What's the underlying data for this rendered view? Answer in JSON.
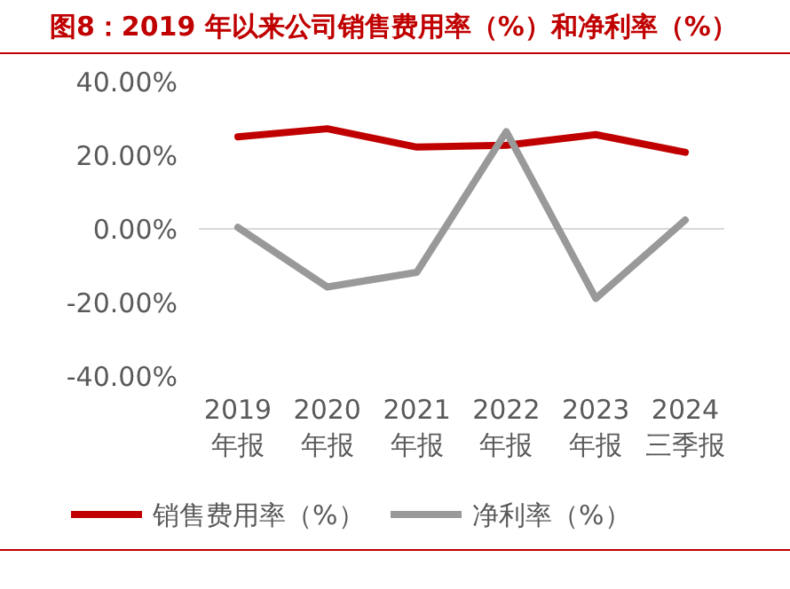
{
  "chart_data": {
    "type": "line",
    "title": "图8：2019 年以来公司销售费用率（%）和净利率（%）",
    "categories": [
      "2019\n年报",
      "2020\n年报",
      "2021\n年报",
      "2022\n年报",
      "2023\n年报",
      "2024\n三季报"
    ],
    "series": [
      {
        "name": "销售费用率（%）",
        "color": "#c00000",
        "values": [
          25.0,
          27.2,
          22.2,
          22.7,
          25.6,
          20.8
        ]
      },
      {
        "name": "净利率（%）",
        "color": "#999999",
        "values": [
          0.4,
          -15.8,
          -11.8,
          26.4,
          -18.9,
          2.4
        ]
      }
    ],
    "ylim": [
      -40,
      40
    ],
    "yticks": [
      {
        "value": -40,
        "label": "-40.00%"
      },
      {
        "value": -20,
        "label": "-20.00%"
      },
      {
        "value": 0,
        "label": "0.00%"
      },
      {
        "value": 20,
        "label": "20.00%"
      },
      {
        "value": 40,
        "label": "40.00%"
      }
    ],
    "legend": "bottom"
  }
}
